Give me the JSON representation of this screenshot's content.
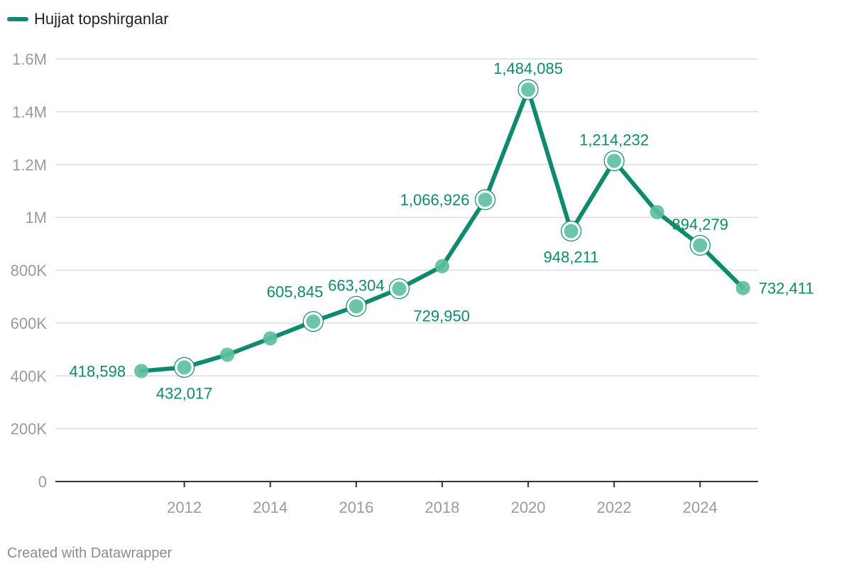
{
  "legend": {
    "label": "Hujjat topshirganlar"
  },
  "footer": {
    "credit": "Created with Datawrapper"
  },
  "colors": {
    "line": "#0e8a6d",
    "dot": "#5cbf9f",
    "label": "#0e8a6d",
    "grid": "#dddddd",
    "axis": "#333333",
    "tick": "#9a9a9a"
  },
  "chart_data": {
    "type": "line",
    "x": [
      2011,
      2012,
      2013,
      2014,
      2015,
      2016,
      2017,
      2018,
      2019,
      2020,
      2021,
      2022,
      2023,
      2024,
      2025
    ],
    "series": [
      {
        "name": "Hujjat topshirganlar",
        "values": [
          418598,
          432017,
          480000,
          542000,
          605845,
          663304,
          729950,
          815000,
          1066926,
          1484085,
          948211,
          1214232,
          1020000,
          894279,
          732411
        ]
      }
    ],
    "labels": [
      {
        "x": 2011,
        "text": "418,598",
        "pos": "left",
        "highlight": false
      },
      {
        "x": 2012,
        "text": "432,017",
        "pos": "below",
        "highlight": true
      },
      {
        "x": 2015,
        "text": "605,845",
        "pos": "upper-left",
        "highlight": true
      },
      {
        "x": 2016,
        "text": "663,304",
        "pos": "above",
        "highlight": true
      },
      {
        "x": 2017,
        "text": "729,950",
        "pos": "lower-right",
        "highlight": true
      },
      {
        "x": 2019,
        "text": "1,066,926",
        "pos": "left",
        "highlight": true
      },
      {
        "x": 2020,
        "text": "1,484,085",
        "pos": "above",
        "highlight": true
      },
      {
        "x": 2021,
        "text": "948,211",
        "pos": "below",
        "highlight": true
      },
      {
        "x": 2022,
        "text": "1,214,232",
        "pos": "above",
        "highlight": true
      },
      {
        "x": 2024,
        "text": "894,279",
        "pos": "above",
        "highlight": true
      },
      {
        "x": 2025,
        "text": "732,411",
        "pos": "right",
        "highlight": false
      }
    ],
    "y_ticks": [
      {
        "value": 0,
        "label": "0"
      },
      {
        "value": 200000,
        "label": "200K"
      },
      {
        "value": 400000,
        "label": "400K"
      },
      {
        "value": 600000,
        "label": "600K"
      },
      {
        "value": 800000,
        "label": "800K"
      },
      {
        "value": 1000000,
        "label": "1M"
      },
      {
        "value": 1200000,
        "label": "1.2M"
      },
      {
        "value": 1400000,
        "label": "1.4M"
      },
      {
        "value": 1600000,
        "label": "1.6M"
      }
    ],
    "x_ticks": [
      {
        "value": 2012,
        "label": "2012"
      },
      {
        "value": 2014,
        "label": "2014"
      },
      {
        "value": 2016,
        "label": "2016"
      },
      {
        "value": 2018,
        "label": "2018"
      },
      {
        "value": 2020,
        "label": "2020"
      },
      {
        "value": 2022,
        "label": "2022"
      },
      {
        "value": 2024,
        "label": "2024"
      }
    ],
    "ylim": [
      0,
      1600000
    ],
    "xlim": [
      2009,
      2025.35
    ],
    "grid": true,
    "legend_position": "top-left"
  }
}
